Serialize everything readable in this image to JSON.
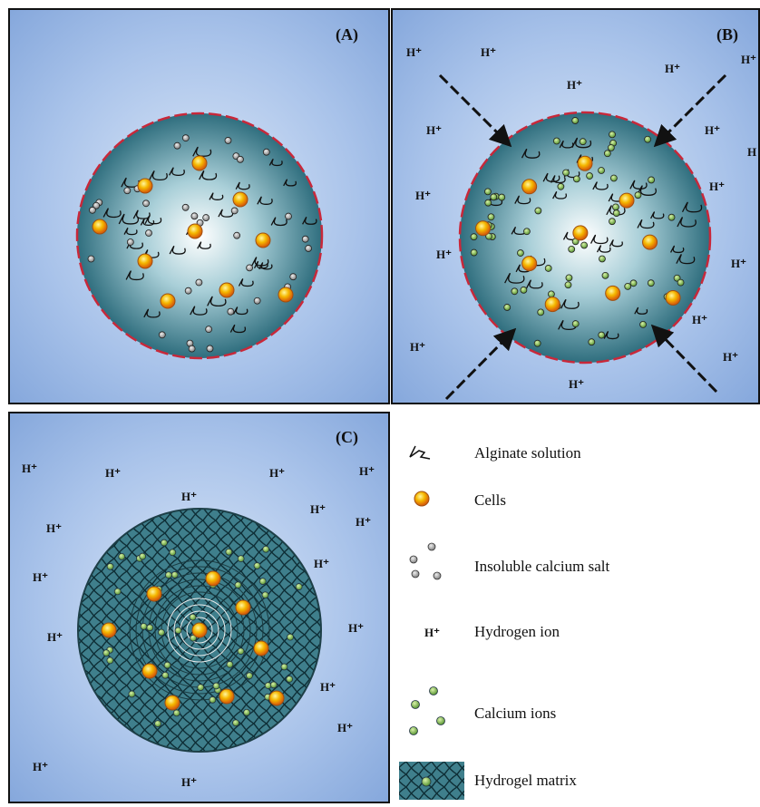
{
  "panels": [
    {
      "label": "(A)"
    },
    {
      "label": "(B)",
      "ion_labels": [
        "H⁺",
        "H⁺",
        "H⁺",
        "H⁺",
        "H⁺",
        "H⁺",
        "H⁺",
        "H",
        "H⁺",
        "H⁺",
        "H⁺",
        "H⁺",
        "H⁺",
        "H⁺",
        "H⁺",
        "H⁺"
      ]
    },
    {
      "label": "(C)",
      "ion_labels": [
        "H⁺",
        "H⁺",
        "H⁺",
        "H⁺",
        "H⁺",
        "H⁺",
        "H⁺",
        "H⁺",
        "H⁺",
        "H⁺",
        "H⁺",
        "H⁺",
        "H⁺",
        "H⁺",
        "H⁺",
        "H⁺"
      ]
    }
  ],
  "legend": {
    "items": [
      {
        "label": "Alginate solution"
      },
      {
        "label": "Cells"
      },
      {
        "label": "Insoluble calcium salt"
      },
      {
        "symbol": "H⁺",
        "label": "Hydrogen ion"
      },
      {
        "label": "Calcium ions"
      },
      {
        "label": "Hydrogel matrix"
      }
    ]
  }
}
